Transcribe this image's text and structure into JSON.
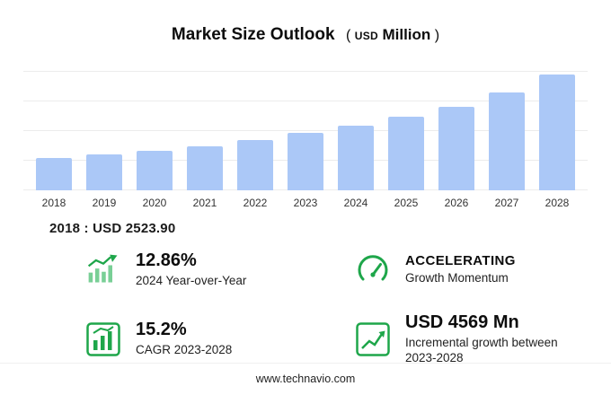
{
  "header": {
    "title": "Market Size Outlook",
    "unit_open": "(",
    "unit_currency": "USD",
    "unit_word": "Million",
    "unit_close": ")"
  },
  "chart_data": {
    "type": "bar",
    "title": "Market Size Outlook",
    "unit": "USD Million",
    "categories": [
      "2018",
      "2019",
      "2020",
      "2021",
      "2022",
      "2023",
      "2024",
      "2025",
      "2026",
      "2027",
      "2028"
    ],
    "values": [
      2523.9,
      2800,
      3080,
      3420,
      3880,
      4445,
      5017,
      5700,
      6500,
      7600,
      9014
    ],
    "ylim": [
      0,
      9200
    ],
    "bar_color": "#abc8f7",
    "grid": true,
    "legend": "none",
    "xlabel": "",
    "ylabel": ""
  },
  "annotation": {
    "text": "2018 : USD 2523.90"
  },
  "stats": [
    {
      "id": "yoy",
      "icon": "bar-growth-icon",
      "value": "12.86%",
      "label": "2024 Year-over-Year"
    },
    {
      "id": "momentum",
      "icon": "gauge-icon",
      "value": "ACCELERATING",
      "label": "Growth Momentum"
    },
    {
      "id": "cagr",
      "icon": "cagr-chart-icon",
      "value": "15.2%",
      "label": "CAGR 2023-2028"
    },
    {
      "id": "incremental",
      "icon": "line-growth-icon",
      "value": "USD 4569 Mn",
      "label": "Incremental growth between 2023-2028"
    }
  ],
  "footer": {
    "url": "www.technavio.com"
  },
  "colors": {
    "bar": "#abc8f7",
    "accent_green": "#1ea64a",
    "light_green": "#79cf96",
    "gridline": "#ececec"
  }
}
